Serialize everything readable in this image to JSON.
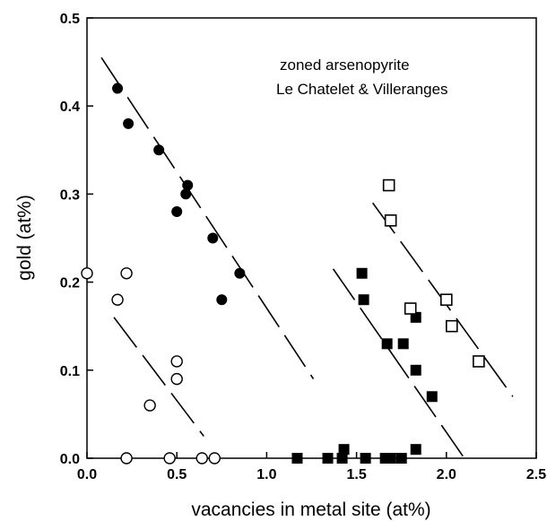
{
  "chart_data": {
    "type": "scatter",
    "title": "",
    "xlabel": "vacancies in metal site (at%)",
    "ylabel": "gold (at%)",
    "xlim": [
      0,
      2.5
    ],
    "ylim": [
      0,
      0.5
    ],
    "xticks": [
      0.0,
      0.5,
      1.0,
      1.5,
      2.0,
      2.5
    ],
    "yticks": [
      0.0,
      0.1,
      0.2,
      0.3,
      0.4,
      0.5
    ],
    "xtick_labels": [
      "0.0",
      "0.5",
      "1.0",
      "1.5",
      "2.0",
      "2.5"
    ],
    "ytick_labels": [
      "0.0",
      "0.1",
      "0.2",
      "0.3",
      "0.4",
      "0.5"
    ],
    "grid": false,
    "legend": "none",
    "annotations": [
      "zoned arsenopyrite",
      "Le Chatelet & Villeranges"
    ],
    "series": [
      {
        "marker": "filled-circle",
        "points": [
          [
            0.17,
            0.42
          ],
          [
            0.23,
            0.38
          ],
          [
            0.4,
            0.35
          ],
          [
            0.55,
            0.3
          ],
          [
            0.56,
            0.31
          ],
          [
            0.5,
            0.28
          ],
          [
            0.7,
            0.25
          ],
          [
            0.75,
            0.18
          ],
          [
            0.85,
            0.21
          ]
        ]
      },
      {
        "marker": "open-circle",
        "points": [
          [
            0.0,
            0.21
          ],
          [
            0.22,
            0.21
          ],
          [
            0.17,
            0.18
          ],
          [
            0.5,
            0.11
          ],
          [
            0.5,
            0.09
          ],
          [
            0.35,
            0.06
          ],
          [
            0.22,
            0.0
          ],
          [
            0.46,
            0.0
          ],
          [
            0.64,
            0.0
          ],
          [
            0.71,
            0.0
          ]
        ]
      },
      {
        "marker": "filled-square",
        "points": [
          [
            1.53,
            0.21
          ],
          [
            1.54,
            0.18
          ],
          [
            1.83,
            0.16
          ],
          [
            1.67,
            0.13
          ],
          [
            1.76,
            0.13
          ],
          [
            1.83,
            0.1
          ],
          [
            1.92,
            0.07
          ],
          [
            1.83,
            0.01
          ],
          [
            1.43,
            0.01
          ],
          [
            1.17,
            0.0
          ],
          [
            1.34,
            0.0
          ],
          [
            1.42,
            0.0
          ],
          [
            1.55,
            0.0
          ],
          [
            1.66,
            0.0
          ],
          [
            1.69,
            0.0
          ],
          [
            1.75,
            0.0
          ]
        ]
      },
      {
        "marker": "open-square",
        "points": [
          [
            1.68,
            0.31
          ],
          [
            1.69,
            0.27
          ],
          [
            1.8,
            0.17
          ],
          [
            2.0,
            0.18
          ],
          [
            2.03,
            0.15
          ],
          [
            2.18,
            0.11
          ]
        ]
      }
    ],
    "trend_lines": [
      {
        "style": "dashed",
        "from": [
          0.08,
          0.455
        ],
        "to": [
          1.26,
          0.09
        ]
      },
      {
        "style": "dashed",
        "from": [
          0.15,
          0.16
        ],
        "to": [
          0.65,
          0.025
        ]
      },
      {
        "style": "dashed",
        "from": [
          1.37,
          0.215
        ],
        "to": [
          2.1,
          0.0
        ]
      },
      {
        "style": "dashed",
        "from": [
          1.59,
          0.29
        ],
        "to": [
          2.37,
          0.07
        ]
      }
    ]
  }
}
